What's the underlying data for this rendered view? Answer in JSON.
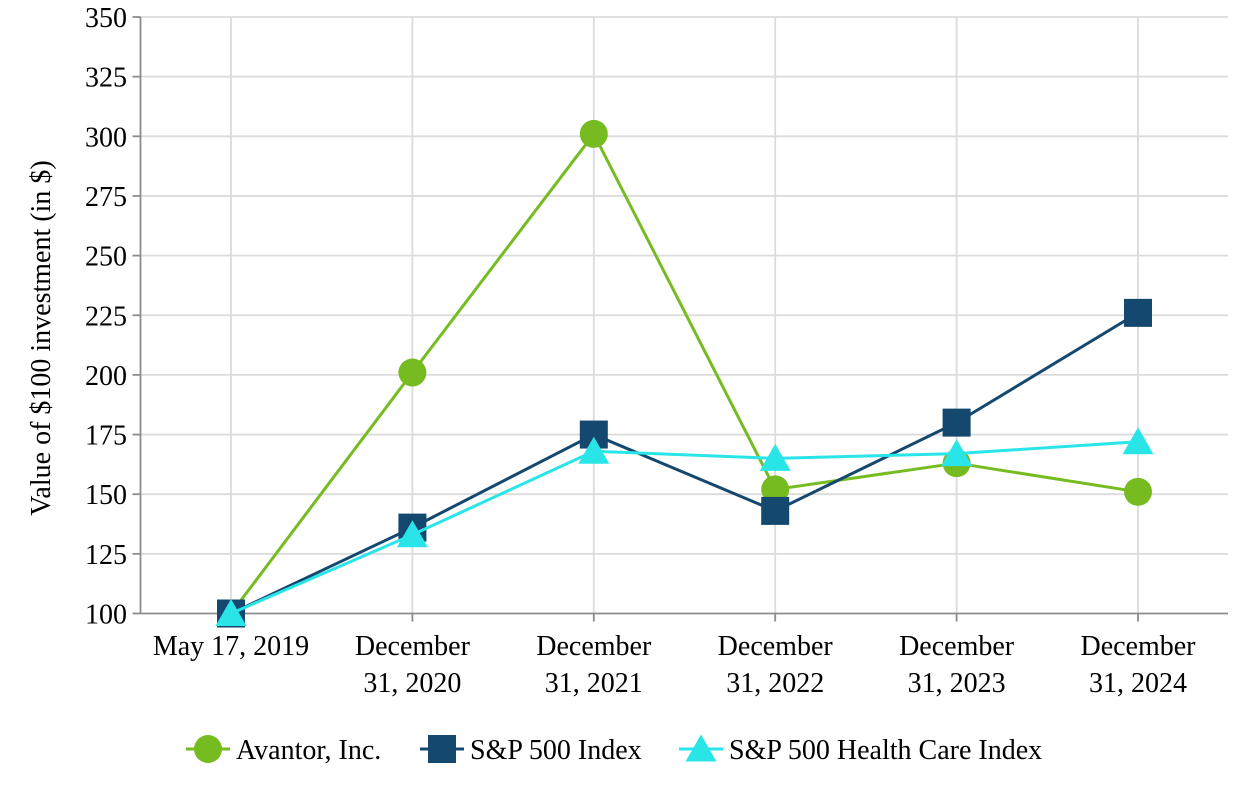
{
  "chart_data": {
    "type": "line",
    "title": "",
    "ylabel": "Value of $100 investment (in $)",
    "xlabel": "",
    "ylim": [
      100,
      350
    ],
    "ytick_step": 25,
    "yticks": [
      100,
      125,
      150,
      175,
      200,
      225,
      250,
      275,
      300,
      325,
      350
    ],
    "grid": true,
    "legend_position": "bottom",
    "categories": [
      "May 17, 2019",
      "December 31, 2020",
      "December 31, 2021",
      "December 31, 2022",
      "December 31, 2023",
      "December 31, 2024"
    ],
    "category_label_lines": [
      [
        "May 17, 2019"
      ],
      [
        "December",
        "31, 2020"
      ],
      [
        "December",
        "31, 2021"
      ],
      [
        "December",
        "31, 2022"
      ],
      [
        "December",
        "31, 2023"
      ],
      [
        "December",
        "31, 2024"
      ]
    ],
    "series": [
      {
        "name": "Avantor, Inc.",
        "marker": "circle",
        "color": "#76BC21",
        "values": [
          100,
          201,
          301,
          152,
          163,
          151
        ]
      },
      {
        "name": "S&P 500 Index",
        "marker": "square",
        "color": "#15486F",
        "values": [
          100,
          136,
          175,
          143,
          180,
          226
        ]
      },
      {
        "name": "S&P 500 Health Care Index",
        "marker": "triangle",
        "color": "#2AE5E8",
        "values": [
          100,
          133,
          168,
          165,
          167,
          172
        ]
      }
    ],
    "colors": {
      "grid": "#DBDBDB",
      "axis": "#8C8C8C",
      "text": "#000000",
      "background": "#FFFFFF"
    }
  }
}
